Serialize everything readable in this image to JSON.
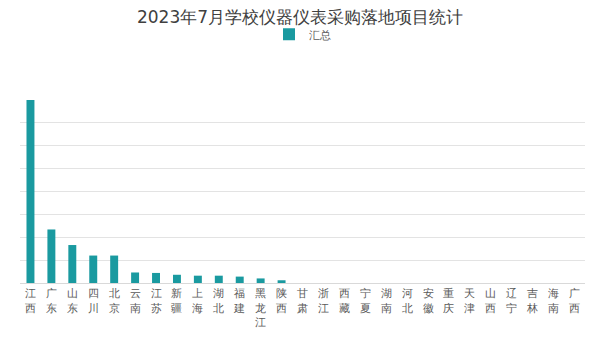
{
  "chart_data": {
    "type": "bar",
    "title": "2023年7月学校仪器仪表采购落地项目统计",
    "categories": [
      "江西",
      "广东",
      "山东",
      "四川",
      "北京",
      "云南",
      "江苏",
      "新疆",
      "上海",
      "湖北",
      "福建",
      "黑龙江",
      "陕西",
      "甘肃",
      "浙江",
      "西藏",
      "宁夏",
      "湖南",
      "河北",
      "安徽",
      "重庆",
      "天津",
      "山西",
      "辽宁",
      "吉林",
      "海南",
      "广西"
    ],
    "series": [
      {
        "name": "汇总",
        "color": "#1a9aa0",
        "values": [
          40,
          11.7,
          8.3,
          6,
          6,
          2.3,
          2.2,
          1.8,
          1.6,
          1.6,
          1.4,
          1,
          0.6,
          0,
          0,
          0,
          0,
          0,
          0,
          0,
          0,
          0,
          0,
          0,
          0,
          0,
          0
        ]
      }
    ],
    "ylim": [
      0,
      40
    ],
    "yticks": [
      0,
      5,
      10,
      15,
      20,
      25,
      30,
      35,
      40
    ],
    "grid": true,
    "legend": "top",
    "tick_labels": "x"
  }
}
